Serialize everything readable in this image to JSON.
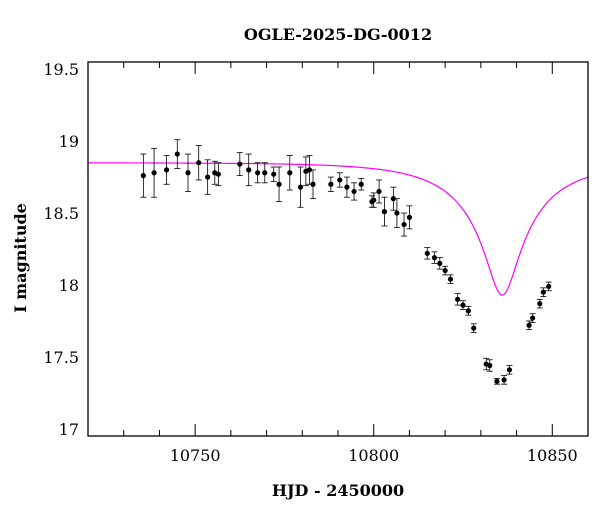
{
  "chart_data": {
    "type": "scatter",
    "title": "OGLE-2025-DG-0012",
    "xlabel": "HJD - 2450000",
    "ylabel": "I magnitude",
    "xlim": [
      10720,
      10860
    ],
    "ylim": [
      19.55,
      16.95
    ],
    "y_inverted": true,
    "x_ticks": [
      10750,
      10800,
      10850
    ],
    "y_ticks": [
      17,
      17.5,
      18,
      18.5,
      19,
      19.5
    ],
    "x_tick_labels": [
      "10750",
      "10800",
      "10850"
    ],
    "y_tick_labels": [
      "17",
      "17.5",
      "18",
      "18.5",
      "19",
      "19.5"
    ],
    "grid": false,
    "colors": {
      "points": "#000000",
      "model": "#ff00ff",
      "axes": "#000000"
    },
    "series": [
      {
        "type": "errorbar-scatter",
        "x": [
          10735.5,
          10738.5,
          10742,
          10745,
          10748,
          10751,
          10753.5,
          10755.5,
          10756.5,
          10762.5,
          10765,
          10767.5,
          10769.5,
          10772,
          10773.5,
          10776.5,
          10779.5,
          10781,
          10782,
          10783,
          10788,
          10790.5,
          10792.5,
          10794.5,
          10796.5,
          10799.5,
          10800,
          10801.5,
          10803,
          10805.5,
          10806.5,
          10808.5,
          10810,
          10815,
          10817,
          10818.5,
          10820,
          10821.5,
          10823.5,
          10825,
          10826.5,
          10828,
          10831.5,
          10832.5,
          10834.5,
          10836.5,
          10838,
          10843.5,
          10844.5,
          10846.5,
          10847.5,
          10849
        ],
        "y": [
          18.76,
          18.78,
          18.8,
          18.91,
          18.78,
          18.85,
          18.75,
          18.78,
          18.77,
          18.84,
          18.8,
          18.78,
          18.78,
          18.77,
          18.7,
          18.78,
          18.68,
          18.79,
          18.8,
          18.7,
          18.7,
          18.73,
          18.68,
          18.65,
          18.7,
          18.58,
          18.59,
          18.65,
          18.51,
          18.6,
          18.5,
          18.42,
          18.47,
          18.22,
          18.19,
          18.15,
          18.1,
          18.04,
          17.9,
          17.86,
          17.82,
          17.7,
          17.45,
          17.44,
          17.33,
          17.34,
          17.41,
          17.72,
          17.77,
          17.87,
          17.95,
          17.99
        ],
        "yerr": [
          0.15,
          0.17,
          0.1,
          0.1,
          0.13,
          0.12,
          0.12,
          0.08,
          0.08,
          0.08,
          0.11,
          0.07,
          0.07,
          0.05,
          0.12,
          0.12,
          0.14,
          0.1,
          0.1,
          0.1,
          0.05,
          0.05,
          0.07,
          0.06,
          0.04,
          0.04,
          0.05,
          0.08,
          0.1,
          0.08,
          0.1,
          0.08,
          0.08,
          0.04,
          0.04,
          0.04,
          0.03,
          0.03,
          0.04,
          0.03,
          0.03,
          0.03,
          0.04,
          0.04,
          0.02,
          0.03,
          0.03,
          0.03,
          0.03,
          0.03,
          0.03,
          0.03
        ]
      },
      {
        "type": "line",
        "model": "point-lens",
        "t0": 10836,
        "tE": 25,
        "u0": 0.17,
        "baseline": 18.85,
        "fs": 0.27
      }
    ]
  }
}
